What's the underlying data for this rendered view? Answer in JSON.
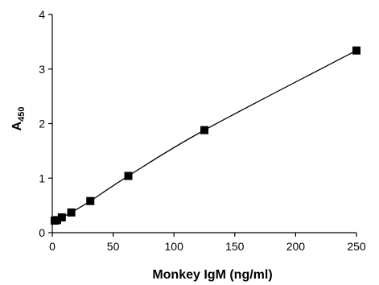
{
  "chart_data": {
    "type": "scatter",
    "xlabel": "Monkey IgM (ng/ml)",
    "ylabel_main": "A",
    "ylabel_sub": "450",
    "xlim": [
      0,
      250
    ],
    "ylim": [
      0,
      4
    ],
    "xticks": [
      "0",
      "50",
      "100",
      "150",
      "200",
      "250"
    ],
    "yticks": [
      "0",
      "1",
      "2",
      "3",
      "4"
    ],
    "grid": false,
    "series": [
      {
        "x": [
          1.95,
          3.9,
          7.8,
          15.6,
          31.25,
          62.5,
          125,
          250
        ],
        "y": [
          0.22,
          0.23,
          0.28,
          0.37,
          0.58,
          1.04,
          1.88,
          3.34
        ]
      }
    ],
    "fit_line": true,
    "marker": "square",
    "color": "#000000"
  }
}
